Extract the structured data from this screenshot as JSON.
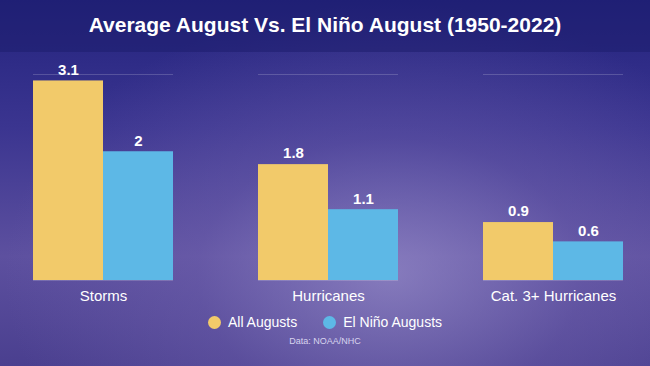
{
  "chart_data": {
    "type": "bar",
    "title": "Average August Vs. El Niño August (1950-2022)",
    "categories": [
      "Storms",
      "Hurricanes",
      "Cat. 3+ Hurricanes"
    ],
    "series": [
      {
        "name": "All Augusts",
        "color": "#f2ca6a",
        "values": [
          3.1,
          1.8,
          0.9
        ]
      },
      {
        "name": "El Niño Augusts",
        "color": "#5db8e6",
        "values": [
          2,
          1.1,
          0.6
        ]
      }
    ],
    "ylim": [
      0,
      3.2
    ],
    "data_labels": true,
    "tick_labels": "x",
    "legend": "bottom",
    "caption": "Data: NOAA/NHC"
  }
}
